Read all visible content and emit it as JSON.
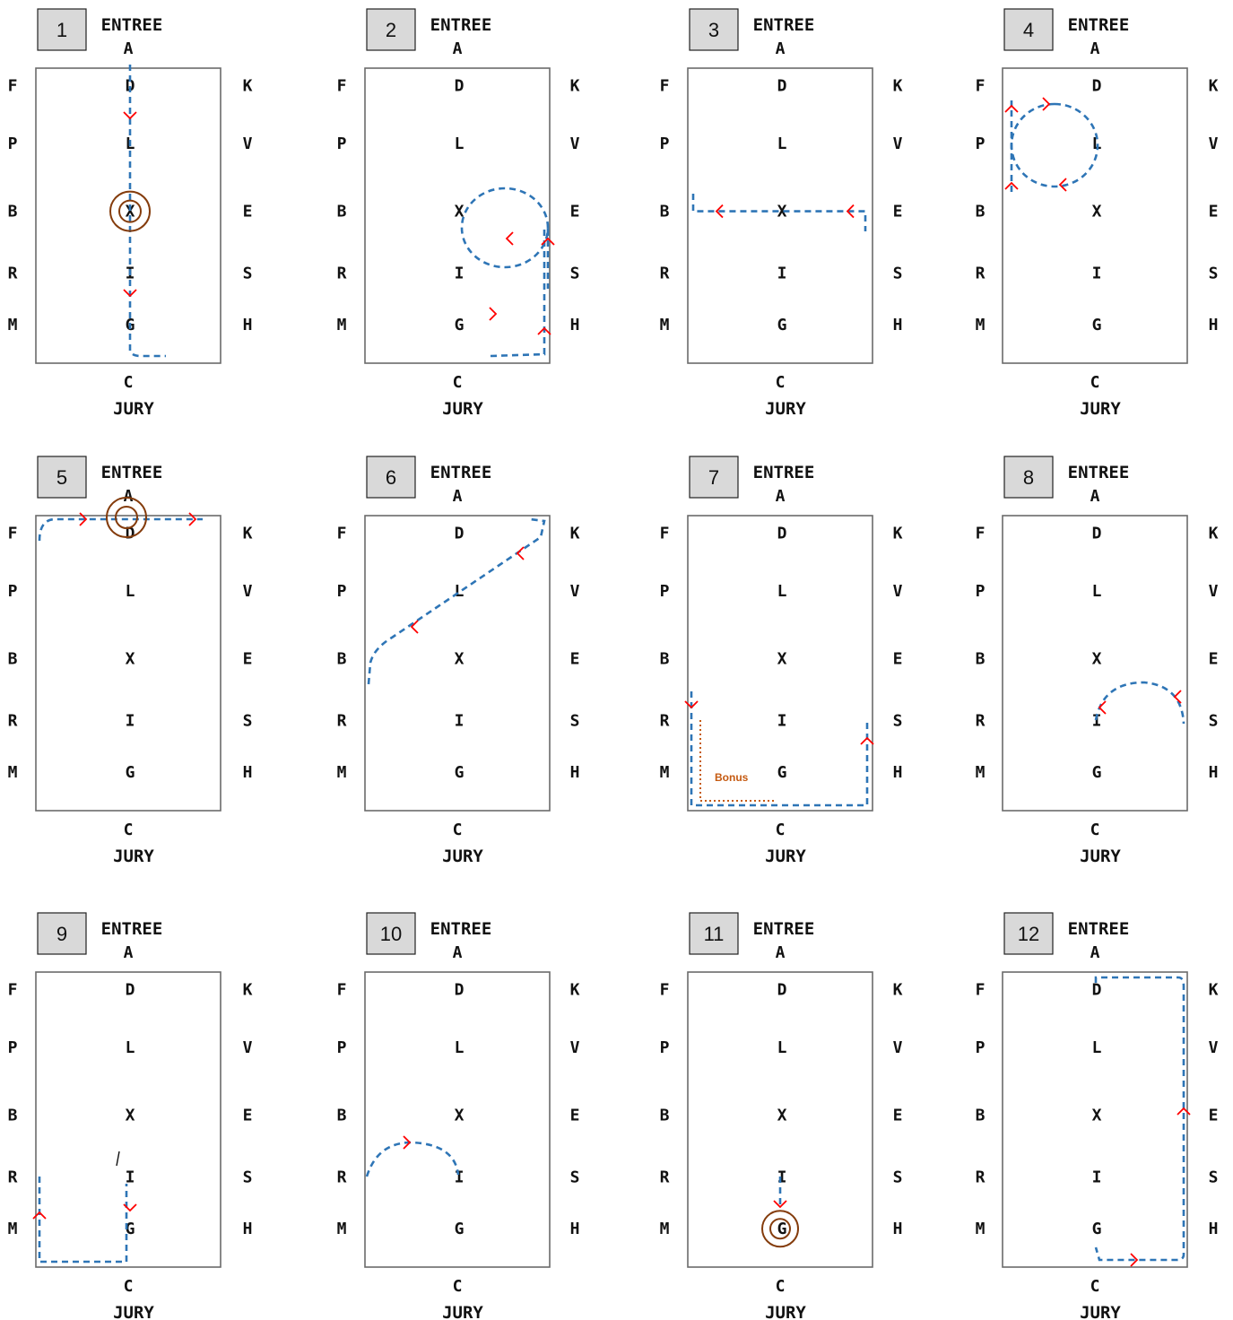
{
  "labels": {
    "entrance_word": "ENTREE",
    "entrance_letter": "A",
    "judge_letter": "C",
    "judge_word": "JURY",
    "left_letters": [
      "F",
      "P",
      "B",
      "R",
      "M"
    ],
    "centre_letters": [
      "D",
      "L",
      "X",
      "I",
      "G"
    ],
    "right_letters": [
      "K",
      "V",
      "E",
      "S",
      "H"
    ]
  },
  "colors": {
    "route": "#2e75b6",
    "direction_arrow": "#ff0000",
    "halt_marker": "#843c0c",
    "bonus": "#c55a11"
  },
  "panels": [
    {
      "number": "1"
    },
    {
      "number": "2"
    },
    {
      "number": "3"
    },
    {
      "number": "4"
    },
    {
      "number": "5"
    },
    {
      "number": "6"
    },
    {
      "number": "7",
      "note": "Bonus"
    },
    {
      "number": "8"
    },
    {
      "number": "9"
    },
    {
      "number": "10"
    },
    {
      "number": "11"
    },
    {
      "number": "12"
    }
  ]
}
